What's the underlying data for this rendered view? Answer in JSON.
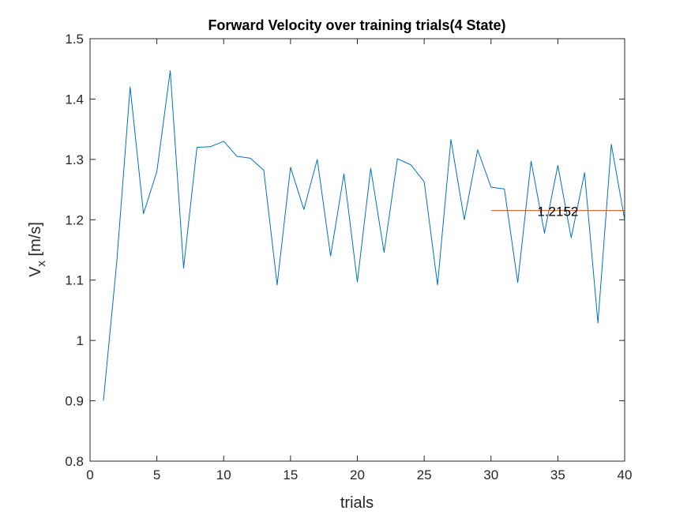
{
  "chart_data": {
    "type": "line",
    "title": "Forward Velocity over training trials(4 State)",
    "xlabel": "trials",
    "ylabel_main": "V",
    "ylabel_sub": "x",
    "ylabel_unit": " [m/s]",
    "xlim": [
      0,
      40
    ],
    "ylim": [
      0.8,
      1.5
    ],
    "xticks": [
      0,
      5,
      10,
      15,
      20,
      25,
      30,
      35,
      40
    ],
    "xtick_labels": [
      "0",
      "5",
      "10",
      "15",
      "20",
      "25",
      "30",
      "35",
      "40"
    ],
    "yticks": [
      0.8,
      0.9,
      1.0,
      1.1,
      1.2,
      1.3,
      1.4,
      1.5
    ],
    "ytick_labels": [
      "0.8",
      "0.9",
      "1",
      "1.1",
      "1.2",
      "1.3",
      "1.4",
      "1.5"
    ],
    "grid": false,
    "series": [
      {
        "color": "#0072BD",
        "x": [
          1,
          2,
          3,
          4,
          5,
          6,
          7,
          8,
          9,
          10,
          11,
          12,
          13,
          14,
          15,
          16,
          17,
          18,
          19,
          20,
          21,
          22,
          23,
          24,
          25,
          26,
          27,
          28,
          29,
          30,
          31,
          32,
          33,
          34,
          35,
          36,
          37,
          38,
          39,
          40
        ],
        "values": [
          0.9,
          1.13,
          1.42,
          1.21,
          1.28,
          1.447,
          1.12,
          1.32,
          1.321,
          1.33,
          1.305,
          1.302,
          1.282,
          1.092,
          1.287,
          1.217,
          1.3,
          1.14,
          1.276,
          1.097,
          1.285,
          1.146,
          1.301,
          1.291,
          1.263,
          1.092,
          1.333,
          1.2,
          1.316,
          1.254,
          1.251,
          1.096,
          1.297,
          1.178,
          1.29,
          1.17,
          1.278,
          1.029,
          1.325,
          1.2
        ]
      },
      {
        "color": "#D95319",
        "x": [
          30,
          40
        ],
        "values": [
          1.2152,
          1.2152
        ]
      }
    ],
    "annotation": {
      "text": "1.2152",
      "x": 35,
      "y": 1.2152
    }
  }
}
